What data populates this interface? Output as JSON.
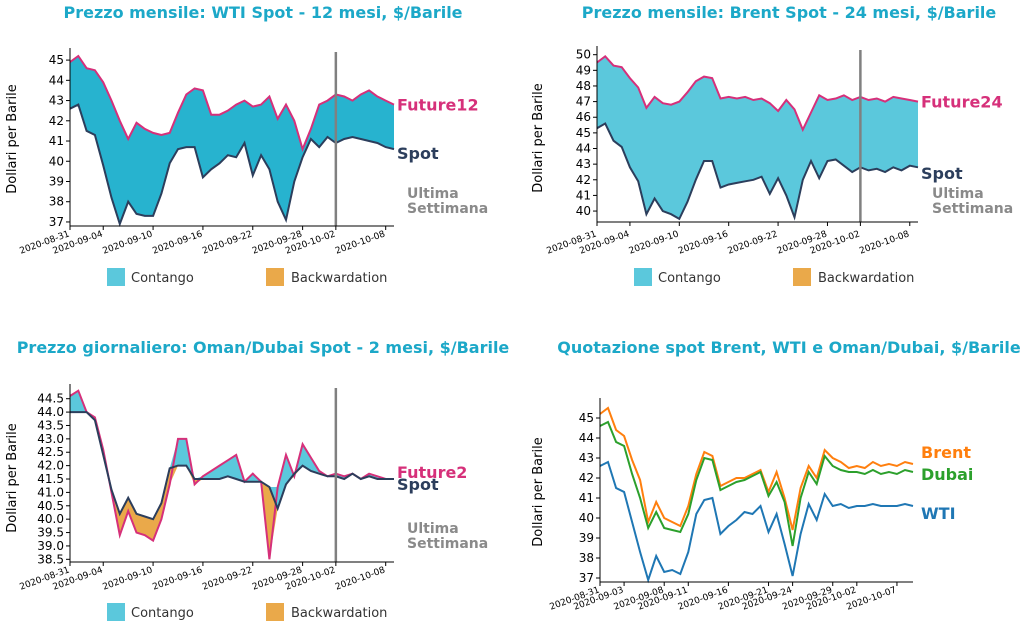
{
  "colors": {
    "title": "#1ca8c8",
    "contango": "#5bc8dc",
    "contango_dark": "#27b3cf",
    "backwardation": "#eaa94a",
    "future_line": "#d6307a",
    "spot_line": "#2c3e5c",
    "week_marker": "#808080",
    "brent": "#ff7f0e",
    "dubai": "#2ca02c",
    "wti": "#1f77b4"
  },
  "legend": {
    "contango": "Contango",
    "backwardation": "Backwardation"
  },
  "chart_data": [
    {
      "type": "area",
      "title": "Prezzo mensile: WTI Spot - 12 mesi, $/Barile",
      "ylabel": "Dollari per Barile",
      "ylim": [
        36.8,
        45.4
      ],
      "yticks": [
        "45",
        "44",
        "43",
        "42",
        "41",
        "40",
        "39",
        "38",
        "37"
      ],
      "ytick_values": [
        45,
        44,
        43,
        42,
        41,
        40,
        39,
        38,
        37
      ],
      "xlim": [
        0,
        39
      ],
      "xtick_labels": [
        "2020-08-31",
        "2020-09-04",
        "2020-09-10",
        "2020-09-16",
        "2020-09-22",
        "2020-09-28",
        "2020-10-02",
        "2020-10-08"
      ],
      "xtick_positions": [
        0,
        4,
        10,
        16,
        22,
        28,
        32,
        38
      ],
      "marker_x": 32,
      "fill": "#27b3cf",
      "end_labels": {
        "future": "Future12",
        "spot": "Spot",
        "ultima": [
          "Ultima",
          "Settimana"
        ]
      },
      "series": [
        {
          "name": "Future12",
          "x": [
            0,
            1,
            2,
            3,
            4,
            5,
            6,
            7,
            8,
            9,
            10,
            11,
            12,
            13,
            14,
            15,
            16,
            17,
            18,
            19,
            20,
            21,
            22,
            23,
            24,
            25,
            26,
            27,
            28,
            29,
            30,
            31,
            32,
            33,
            34,
            35,
            36,
            37,
            38,
            39
          ],
          "values": [
            44.9,
            45.2,
            44.6,
            44.5,
            43.9,
            43.0,
            42.0,
            41.1,
            41.9,
            41.6,
            41.4,
            41.3,
            41.4,
            42.4,
            43.3,
            43.6,
            43.5,
            42.3,
            42.3,
            42.5,
            42.8,
            43.0,
            42.7,
            42.8,
            43.2,
            42.1,
            42.8,
            42.0,
            40.6,
            41.6,
            42.8,
            43.0,
            43.3,
            43.2,
            43.0,
            43.3,
            43.5,
            43.2,
            43.0,
            42.8
          ]
        },
        {
          "name": "Spot",
          "x": [
            0,
            1,
            2,
            3,
            4,
            5,
            6,
            7,
            8,
            9,
            10,
            11,
            12,
            13,
            14,
            15,
            16,
            17,
            18,
            19,
            20,
            21,
            22,
            23,
            24,
            25,
            26,
            27,
            28,
            29,
            30,
            31,
            32,
            33,
            34,
            35,
            36,
            37,
            38,
            39
          ],
          "values": [
            42.6,
            42.8,
            41.5,
            41.3,
            39.8,
            38.2,
            36.9,
            38.0,
            37.4,
            37.3,
            37.3,
            38.4,
            39.9,
            40.6,
            40.7,
            40.7,
            39.2,
            39.6,
            39.9,
            40.3,
            40.2,
            40.9,
            39.3,
            40.3,
            39.6,
            38.0,
            37.1,
            39.0,
            40.2,
            41.1,
            40.7,
            41.2,
            40.9,
            41.1,
            41.2,
            41.1,
            41.0,
            40.9,
            40.7,
            40.6
          ]
        }
      ]
    },
    {
      "type": "area",
      "title": "Prezzo mensile: Brent Spot - 24 mesi, $/Barile",
      "ylabel": "Dollari per Barile",
      "ylim": [
        39.3,
        50.3
      ],
      "yticks": [
        "50",
        "49",
        "48",
        "47",
        "46",
        "45",
        "44",
        "43",
        "42",
        "41",
        "40"
      ],
      "ytick_values": [
        50,
        49,
        48,
        47,
        46,
        45,
        44,
        43,
        42,
        41,
        40
      ],
      "xlim": [
        0,
        39
      ],
      "xtick_labels": [
        "2020-08-31",
        "2020-09-04",
        "2020-09-10",
        "2020-09-16",
        "2020-09-22",
        "2020-09-28",
        "2020-10-02",
        "2020-10-08"
      ],
      "xtick_positions": [
        0,
        4,
        10,
        16,
        22,
        28,
        32,
        38
      ],
      "marker_x": 32,
      "fill": "#5bc8dc",
      "end_labels": {
        "future": "Future24",
        "spot": "Spot",
        "ultima": [
          "Ultima",
          "Settimana"
        ]
      },
      "series": [
        {
          "name": "Future24",
          "x": [
            0,
            1,
            2,
            3,
            4,
            5,
            6,
            7,
            8,
            9,
            10,
            11,
            12,
            13,
            14,
            15,
            16,
            17,
            18,
            19,
            20,
            21,
            22,
            23,
            24,
            25,
            26,
            27,
            28,
            29,
            30,
            31,
            32,
            33,
            34,
            35,
            36,
            37,
            38,
            39
          ],
          "values": [
            49.5,
            49.9,
            49.3,
            49.2,
            48.5,
            47.9,
            46.6,
            47.3,
            46.9,
            46.8,
            47.0,
            47.6,
            48.3,
            48.6,
            48.5,
            47.2,
            47.3,
            47.2,
            47.3,
            47.1,
            47.2,
            46.9,
            46.4,
            47.1,
            46.5,
            45.2,
            46.3,
            47.4,
            47.1,
            47.2,
            47.4,
            47.1,
            47.3,
            47.1,
            47.2,
            47.0,
            47.3,
            47.2,
            47.1,
            47.0
          ]
        },
        {
          "name": "Spot",
          "x": [
            0,
            1,
            2,
            3,
            4,
            5,
            6,
            7,
            8,
            9,
            10,
            11,
            12,
            13,
            14,
            15,
            16,
            17,
            18,
            19,
            20,
            21,
            22,
            23,
            24,
            25,
            26,
            27,
            28,
            29,
            30,
            31,
            32,
            33,
            34,
            35,
            36,
            37,
            38,
            39
          ],
          "values": [
            45.3,
            45.6,
            44.5,
            44.1,
            42.8,
            41.9,
            39.8,
            40.8,
            40.0,
            39.8,
            39.5,
            40.6,
            42.0,
            43.2,
            43.2,
            41.5,
            41.7,
            41.8,
            41.9,
            42.0,
            42.2,
            41.1,
            42.1,
            41.0,
            39.6,
            42.0,
            43.2,
            42.1,
            43.2,
            43.3,
            42.9,
            42.5,
            42.8,
            42.6,
            42.7,
            42.5,
            42.8,
            42.6,
            42.9,
            42.8
          ]
        }
      ]
    },
    {
      "type": "area",
      "title": "Prezzo giornaliero: Oman/Dubai Spot - 2 mesi, $/Barile",
      "ylabel": "Dollari per Barile",
      "ylim": [
        38.4,
        44.9
      ],
      "yticks": [
        "44.5",
        "44.0",
        "43.5",
        "43.0",
        "42.5",
        "42.0",
        "41.5",
        "41.0",
        "40.5",
        "40.0",
        "39.5",
        "39.0",
        "38.5"
      ],
      "ytick_values": [
        44.5,
        44.0,
        43.5,
        43.0,
        42.5,
        42.0,
        41.5,
        41.0,
        40.5,
        40.0,
        39.5,
        39.0,
        38.5
      ],
      "xlim": [
        0,
        39
      ],
      "xtick_labels": [
        "2020-08-31",
        "2020-09-04",
        "2020-09-10",
        "2020-09-16",
        "2020-09-22",
        "2020-09-28",
        "2020-10-02",
        "2020-10-08"
      ],
      "xtick_positions": [
        0,
        4,
        10,
        16,
        22,
        28,
        32,
        38
      ],
      "marker_x": 32,
      "fill": "#5bc8dc",
      "end_labels": {
        "future": "Future2",
        "spot": "Spot",
        "ultima": [
          "Ultima",
          "Settimana"
        ]
      },
      "series": [
        {
          "name": "Future2",
          "x": [
            0,
            1,
            2,
            3,
            4,
            5,
            6,
            7,
            8,
            9,
            10,
            11,
            12,
            13,
            14,
            15,
            16,
            17,
            18,
            19,
            20,
            21,
            22,
            23,
            24,
            25,
            26,
            27,
            28,
            29,
            30,
            31,
            32,
            33,
            34,
            35,
            36,
            37,
            38,
            39
          ],
          "values": [
            44.6,
            44.8,
            44.0,
            43.8,
            42.6,
            41.0,
            39.4,
            40.3,
            39.5,
            39.4,
            39.2,
            40.0,
            41.3,
            43.0,
            43.0,
            41.3,
            41.6,
            41.8,
            42.0,
            42.2,
            42.4,
            41.4,
            41.7,
            41.4,
            38.5,
            41.2,
            42.4,
            41.6,
            42.8,
            42.3,
            41.8,
            41.6,
            41.7,
            41.6,
            41.7,
            41.5,
            41.7,
            41.6,
            41.5,
            41.5
          ]
        },
        {
          "name": "Spot",
          "x": [
            0,
            1,
            2,
            3,
            4,
            5,
            6,
            7,
            8,
            9,
            10,
            11,
            12,
            13,
            14,
            15,
            16,
            17,
            18,
            19,
            20,
            21,
            22,
            23,
            24,
            25,
            26,
            27,
            28,
            29,
            30,
            31,
            32,
            33,
            34,
            35,
            36,
            37,
            38,
            39
          ],
          "values": [
            44.0,
            44.0,
            44.0,
            43.7,
            42.4,
            41.1,
            40.2,
            40.8,
            40.2,
            40.1,
            40.0,
            40.6,
            41.9,
            42.0,
            42.0,
            41.5,
            41.5,
            41.5,
            41.5,
            41.6,
            41.5,
            41.4,
            41.4,
            41.4,
            41.2,
            40.4,
            41.3,
            41.7,
            42.0,
            41.8,
            41.7,
            41.6,
            41.6,
            41.5,
            41.7,
            41.5,
            41.6,
            41.5,
            41.5,
            41.5
          ]
        }
      ]
    },
    {
      "type": "line",
      "title": "Quotazione spot Brent, WTI e Oman/Dubai, $/Barile",
      "ylabel": "Dollari per Barile",
      "ylim": [
        36.8,
        45.8
      ],
      "yticks": [
        "45",
        "44",
        "43",
        "42",
        "41",
        "40",
        "39",
        "38",
        "37"
      ],
      "ytick_values": [
        45,
        44,
        43,
        42,
        41,
        40,
        39,
        38,
        37
      ],
      "xlim": [
        0,
        39
      ],
      "xtick_labels": [
        "2020-08-31",
        "2020-09-03",
        "2020-09-08",
        "2020-09-11",
        "2020-09-16",
        "2020-09-21",
        "2020-09-24",
        "2020-09-29",
        "2020-10-02",
        "2020-10-07"
      ],
      "xtick_positions": [
        0,
        3,
        8,
        11,
        16,
        21,
        24,
        29,
        32,
        37
      ],
      "end_labels": {
        "brent": "Brent",
        "dubai": "Dubai",
        "wti": "WTI"
      },
      "series": [
        {
          "name": "Brent",
          "color": "#ff7f0e",
          "x": [
            0,
            1,
            2,
            3,
            4,
            5,
            6,
            7,
            8,
            9,
            10,
            11,
            12,
            13,
            14,
            15,
            16,
            17,
            18,
            19,
            20,
            21,
            22,
            23,
            24,
            25,
            26,
            27,
            28,
            29,
            30,
            31,
            32,
            33,
            34,
            35,
            36,
            37,
            38,
            39
          ],
          "values": [
            45.2,
            45.5,
            44.4,
            44.1,
            42.9,
            41.9,
            39.8,
            40.8,
            40.0,
            39.8,
            39.6,
            40.6,
            42.2,
            43.3,
            43.1,
            41.6,
            41.8,
            42.0,
            42.0,
            42.2,
            42.4,
            41.3,
            42.3,
            41.0,
            39.4,
            41.5,
            42.6,
            42.0,
            43.4,
            43.0,
            42.8,
            42.5,
            42.6,
            42.5,
            42.8,
            42.6,
            42.7,
            42.6,
            42.8,
            42.7
          ]
        },
        {
          "name": "Dubai",
          "color": "#2ca02c",
          "x": [
            0,
            1,
            2,
            3,
            4,
            5,
            6,
            7,
            8,
            9,
            10,
            11,
            12,
            13,
            14,
            15,
            16,
            17,
            18,
            19,
            20,
            21,
            22,
            23,
            24,
            25,
            26,
            27,
            28,
            29,
            30,
            31,
            32,
            33,
            34,
            35,
            36,
            37,
            38,
            39
          ],
          "values": [
            44.6,
            44.8,
            43.8,
            43.6,
            42.2,
            41.0,
            39.5,
            40.3,
            39.5,
            39.4,
            39.3,
            40.2,
            41.9,
            43.0,
            42.9,
            41.4,
            41.6,
            41.8,
            41.9,
            42.1,
            42.3,
            41.1,
            41.8,
            40.8,
            38.6,
            41.0,
            42.3,
            41.7,
            43.1,
            42.6,
            42.4,
            42.3,
            42.3,
            42.2,
            42.4,
            42.2,
            42.3,
            42.2,
            42.4,
            42.3
          ]
        },
        {
          "name": "WTI",
          "color": "#1f77b4",
          "x": [
            0,
            1,
            2,
            3,
            4,
            5,
            6,
            7,
            8,
            9,
            10,
            11,
            12,
            13,
            14,
            15,
            16,
            17,
            18,
            19,
            20,
            21,
            22,
            23,
            24,
            25,
            26,
            27,
            28,
            29,
            30,
            31,
            32,
            33,
            34,
            35,
            36,
            37,
            38,
            39
          ],
          "values": [
            42.6,
            42.8,
            41.5,
            41.3,
            39.8,
            38.3,
            36.9,
            38.1,
            37.3,
            37.4,
            37.2,
            38.3,
            40.2,
            40.9,
            41.0,
            39.2,
            39.6,
            39.9,
            40.3,
            40.2,
            40.6,
            39.3,
            40.2,
            38.7,
            37.1,
            39.2,
            40.7,
            39.9,
            41.2,
            40.6,
            40.7,
            40.5,
            40.6,
            40.6,
            40.7,
            40.6,
            40.6,
            40.6,
            40.7,
            40.6
          ]
        }
      ]
    }
  ]
}
